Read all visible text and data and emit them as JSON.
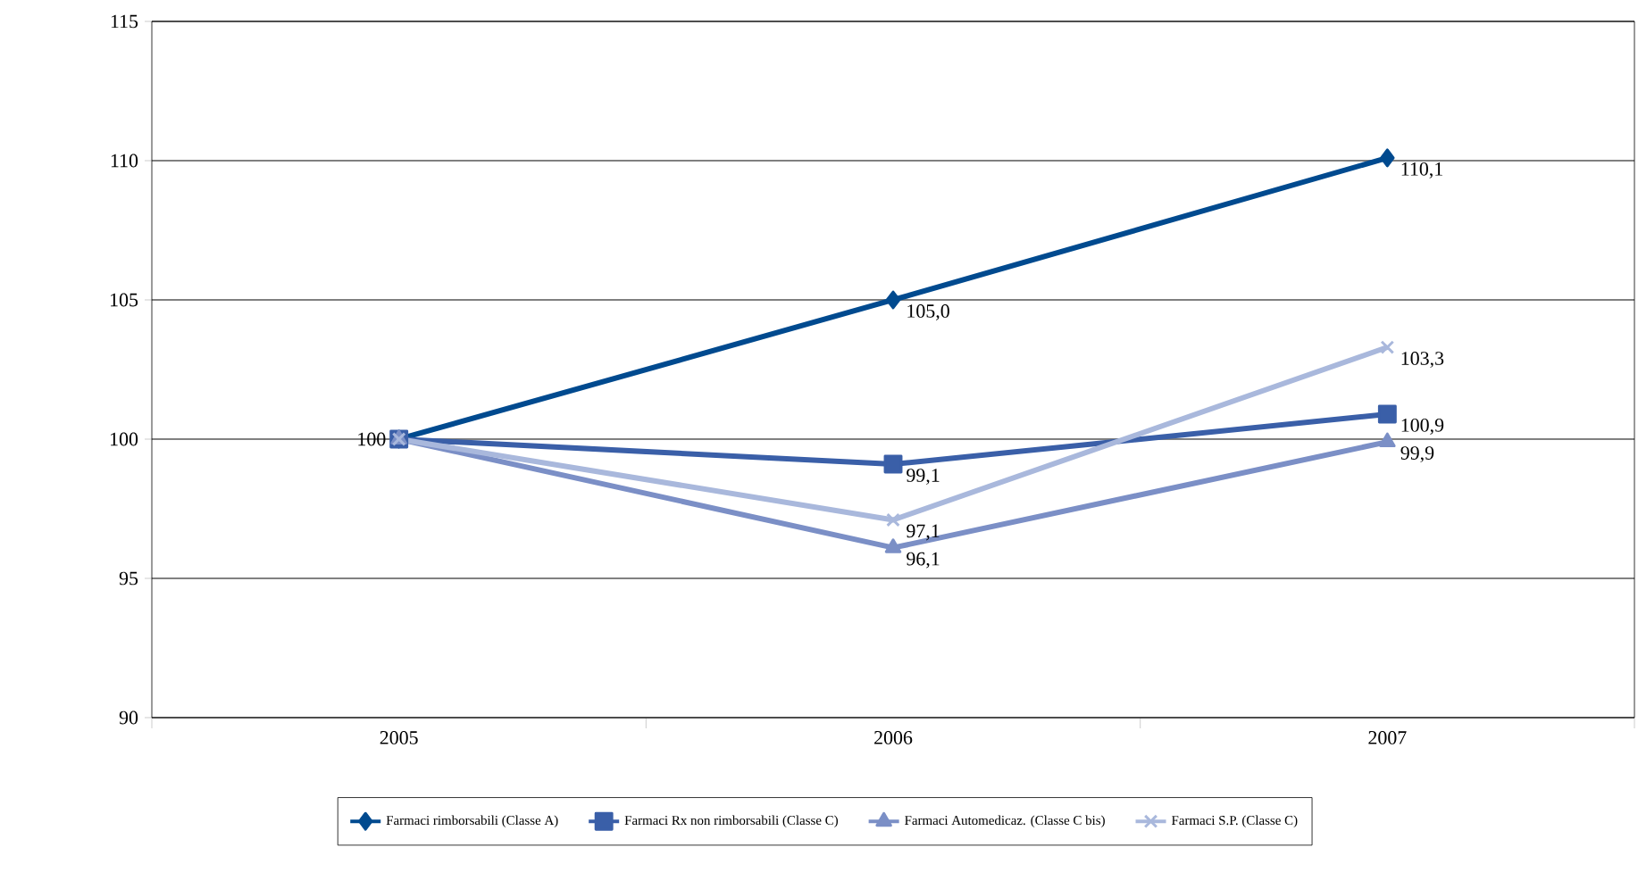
{
  "chart_data": {
    "type": "line",
    "categories": [
      "2005",
      "2006",
      "2007"
    ],
    "series": [
      {
        "name": "Farmaci rimborsabili (Classe A)",
        "color": "#004a8f",
        "marker": "diamond",
        "values": [
          100,
          105.0,
          110.1
        ],
        "value_labels": [
          "100",
          "105,0",
          "110,1"
        ]
      },
      {
        "name": "Farmaci Rx non rimborsabili (Classe C)",
        "color": "#3a5fa8",
        "marker": "square",
        "values": [
          100,
          99.1,
          100.9
        ],
        "value_labels": [
          null,
          "99,1",
          "100,9"
        ]
      },
      {
        "name": "Farmaci Automedicaz. (Classe C bis)",
        "color": "#7b8fc6",
        "marker": "triangle",
        "values": [
          100,
          96.1,
          99.9
        ],
        "value_labels": [
          null,
          "96,1",
          "99,9"
        ]
      },
      {
        "name": "Farmaci S.P. (Classe C)",
        "color": "#a9b8dc",
        "marker": "cross",
        "values": [
          100,
          97.1,
          103.3
        ],
        "value_labels": [
          null,
          "97,1",
          "103,3"
        ]
      }
    ],
    "ylim": [
      90,
      115
    ],
    "yticks": [
      90,
      95,
      100,
      105,
      110,
      115
    ],
    "grid": "y",
    "legend": "bottom",
    "line_style": "solid"
  }
}
